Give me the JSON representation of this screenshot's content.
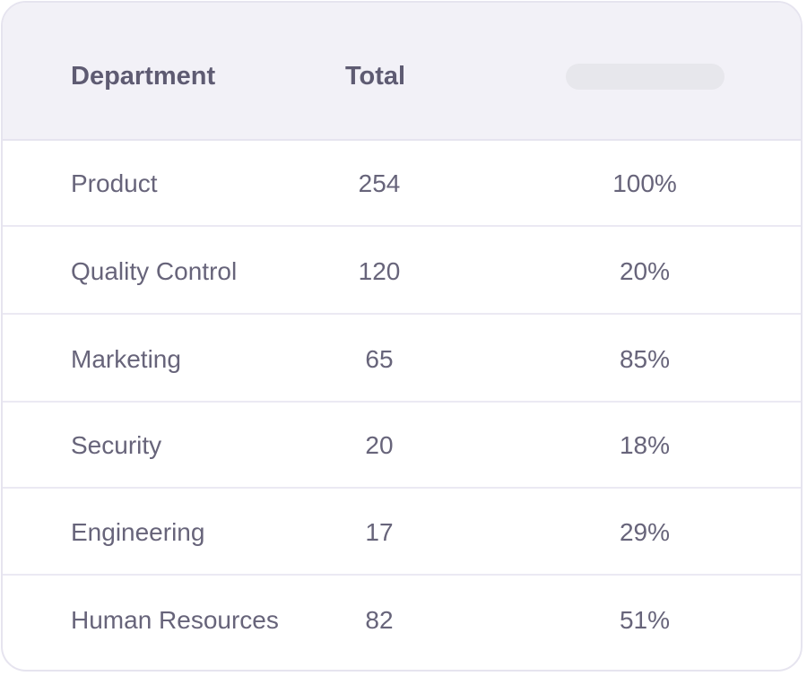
{
  "table": {
    "headers": {
      "department": "Department",
      "total": "Total"
    },
    "rows": [
      {
        "department": "Product",
        "total": "254",
        "percent": "100%"
      },
      {
        "department": "Quality Control",
        "total": "120",
        "percent": "20%"
      },
      {
        "department": "Marketing",
        "total": "65",
        "percent": "85%"
      },
      {
        "department": "Security",
        "total": "20",
        "percent": "18%"
      },
      {
        "department": "Engineering",
        "total": "17",
        "percent": "29%"
      },
      {
        "department": "Human Resources",
        "total": "82",
        "percent": "51%"
      }
    ]
  },
  "colors": {
    "header_background": "#f2f1f7",
    "text": "#67647a",
    "header_text": "#5e5b72",
    "border": "#e6e4ef",
    "placeholder": "#e7e7ec"
  }
}
